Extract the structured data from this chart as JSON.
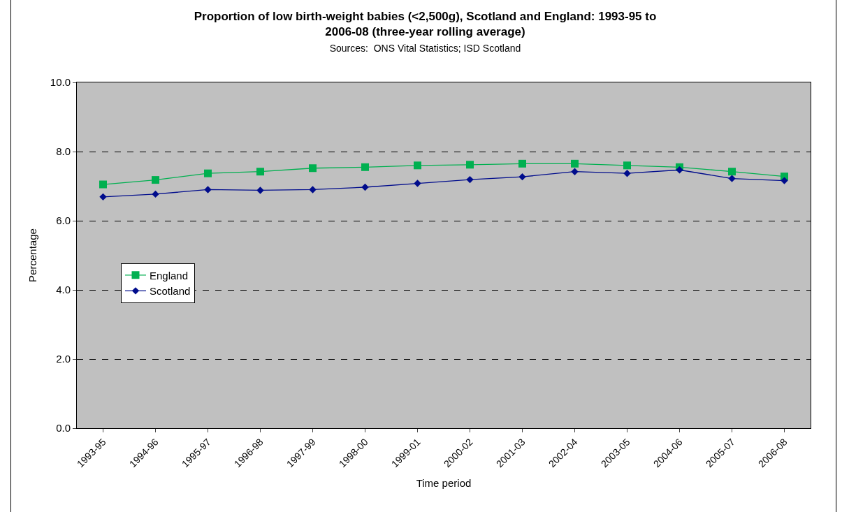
{
  "chart_data": {
    "type": "line",
    "title": "Proportion of low birth-weight babies (<2,500g), Scotland and England: 1993-95 to 2006-08 (three-year rolling average)",
    "subtitle": "Sources:  ONS Vital Statistics; ISD Scotland",
    "xlabel": "Time period",
    "ylabel": "Percentage",
    "categories": [
      "1993-95",
      "1994-96",
      "1995-97",
      "1996-98",
      "1997-99",
      "1998-00",
      "1999-01",
      "2000-02",
      "2001-03",
      "2002-04",
      "2003-05",
      "2004-06",
      "2005-07",
      "2006-08"
    ],
    "series": [
      {
        "name": "England",
        "color": "#00b050",
        "marker": "square",
        "values": [
          7.05,
          7.18,
          7.37,
          7.42,
          7.52,
          7.55,
          7.6,
          7.62,
          7.65,
          7.65,
          7.6,
          7.55,
          7.42,
          7.28
        ]
      },
      {
        "name": "Scotland",
        "color": "#000c8c",
        "marker": "diamond",
        "values": [
          6.69,
          6.77,
          6.9,
          6.88,
          6.9,
          6.97,
          7.08,
          7.19,
          7.27,
          7.42,
          7.37,
          7.47,
          7.22,
          7.16
        ]
      }
    ],
    "ylim": [
      0,
      10
    ],
    "yticks": [
      {
        "value": 0,
        "label": "0.0"
      },
      {
        "value": 2,
        "label": "2.0"
      },
      {
        "value": 4,
        "label": "4.0"
      },
      {
        "value": 6,
        "label": "6.0"
      },
      {
        "value": 8,
        "label": "8.0"
      },
      {
        "value": 10,
        "label": "10.0"
      }
    ],
    "grid": "y",
    "legend": "left",
    "line_style": "solid"
  }
}
